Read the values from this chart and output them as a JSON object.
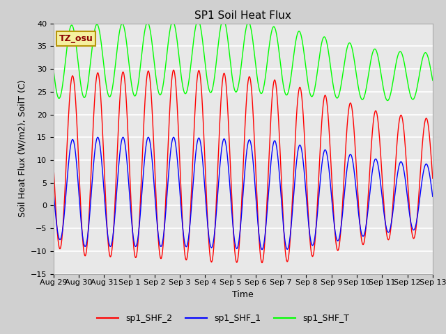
{
  "title": "SP1 Soil Heat Flux",
  "xlabel": "Time",
  "ylabel": "Soil Heat Flux (W/m2), SoilT (C)",
  "ylim": [
    -15,
    40
  ],
  "fig_bg_color": "#d0d0d0",
  "plot_bg_color": "#e8e8e8",
  "grid_color": "white",
  "line_colors": {
    "shf2": "red",
    "shf1": "blue",
    "shft": "lime"
  },
  "legend_labels": [
    "sp1_SHF_2",
    "sp1_SHF_1",
    "sp1_SHF_T"
  ],
  "annotation_text": "TZ_osu",
  "annotation_box_color": "#f5f0a0",
  "annotation_border_color": "#b8960a",
  "xtick_labels": [
    "Aug 29",
    "Aug 30",
    "Aug 31",
    "Sep 1",
    "Sep 2",
    "Sep 3",
    "Sep 4",
    "Sep 5",
    "Sep 6",
    "Sep 7",
    "Sep 8",
    "Sep 9",
    "Sep 10",
    "Sep 11",
    "Sep 12",
    "Sep 13"
  ],
  "title_fontsize": 11,
  "axis_label_fontsize": 9,
  "tick_fontsize": 8,
  "legend_fontsize": 9,
  "yticks": [
    -15,
    -10,
    -5,
    0,
    5,
    10,
    15,
    20,
    25,
    30,
    35,
    40
  ]
}
